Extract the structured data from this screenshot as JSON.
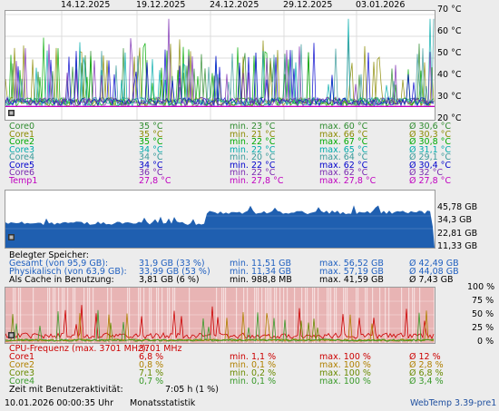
{
  "dates": [
    "14.12.2025",
    "19.12.2025",
    "24.12.2025",
    "29.12.2025",
    "03.01.2026"
  ],
  "temp_chart": {
    "ticks": [
      "70 °C",
      "60 °C",
      "50 °C",
      "40 °C",
      "30 °C",
      "20 °C"
    ],
    "colors": [
      "#2e8b2e",
      "#8a8a00",
      "#00aa00",
      "#00aaaa",
      "#3a9a9a",
      "#0000cc",
      "#7a2ab0",
      "#c000c0"
    ],
    "rows": [
      {
        "name": "Core0",
        "cur": "35 °C",
        "min": "min. 23 °C",
        "max": "max. 60 °C",
        "avg": "Ø 30,6 °C",
        "color": "#2e8b2e"
      },
      {
        "name": "Core1",
        "cur": "35 °C",
        "min": "min. 21 °C",
        "max": "max. 66 °C",
        "avg": "Ø 30,3 °C",
        "color": "#8a8a00"
      },
      {
        "name": "Core2",
        "cur": "35 °C",
        "min": "min. 22 °C",
        "max": "max. 67 °C",
        "avg": "Ø 30,8 °C",
        "color": "#00aa00"
      },
      {
        "name": "Core3",
        "cur": "34 °C",
        "min": "min. 22 °C",
        "max": "max. 65 °C",
        "avg": "Ø 31,1 °C",
        "color": "#00aaaa"
      },
      {
        "name": "Core4",
        "cur": "34 °C",
        "min": "min. 20 °C",
        "max": "max. 64 °C",
        "avg": "Ø 29,1 °C",
        "color": "#3a9a9a"
      },
      {
        "name": "Core5",
        "cur": "34 °C",
        "min": "min. 22 °C",
        "max": "max. 62 °C",
        "avg": "Ø 30,4 °C",
        "color": "#0000cc"
      },
      {
        "name": "Core6",
        "cur": "36 °C",
        "min": "min. 22 °C",
        "max": "max. 62 °C",
        "avg": "Ø 32 °C",
        "color": "#7a2ab0"
      },
      {
        "name": "Temp1",
        "cur": "27,8 °C",
        "min": "min. 27,8 °C",
        "max": "max. 27,8 °C",
        "avg": "Ø 27,8 °C",
        "color": "#c000c0"
      }
    ]
  },
  "mem_chart": {
    "ticks": [
      "45,78 GB",
      "34,3 GB",
      "22,81 GB",
      "11,33 GB"
    ],
    "fill_color": "#1f5fb0",
    "header": "Belegter Speicher:",
    "rows": [
      {
        "name": "Gesamt (von 95,9 GB):",
        "cur": "31,9 GB (33 %)",
        "min": "min. 11,51 GB",
        "max": "max. 56,52 GB",
        "avg": "Ø 42,49 GB",
        "color": "#2060c0"
      },
      {
        "name": "Physikalisch (von 63,9 GB):",
        "cur": "33,99 GB (53 %)",
        "min": "min. 11,34 GB",
        "max": "max. 57,19 GB",
        "avg": "Ø 44,08 GB",
        "color": "#2060c0"
      },
      {
        "name": "Als Cache in Benutzung:",
        "cur": "3,81 GB (6 %)",
        "min": "min. 988,8 MB",
        "max": "max. 41,59 GB",
        "avg": "Ø 7,43 GB",
        "color": "#000000"
      }
    ]
  },
  "cpu_chart": {
    "ticks": [
      "100 %",
      "75 %",
      "50 %",
      "25 %",
      "0 %"
    ],
    "bg_color": "#e8b4b4",
    "freq_label": "CPU-Frequenz (max. 3701 MHz):",
    "freq_value": "3701 MHz",
    "freq_color": "#cc0000",
    "rows": [
      {
        "name": "Core1",
        "cur": "6,8 %",
        "min": "min. 1,1 %",
        "max": "max. 100 %",
        "avg": "Ø 12 %",
        "color": "#cc0000"
      },
      {
        "name": "Core2",
        "cur": "0,8 %",
        "min": "min. 0,1 %",
        "max": "max. 100 %",
        "avg": "Ø 2,8 %",
        "color": "#b08000"
      },
      {
        "name": "Core3",
        "cur": "7,1 %",
        "min": "min. 0,2 %",
        "max": "max. 100 %",
        "avg": "Ø 6,8 %",
        "color": "#6a8a00"
      },
      {
        "name": "Core4",
        "cur": "0,7 %",
        "min": "min. 0,1 %",
        "max": "max. 100 %",
        "avg": "Ø 3,4 %",
        "color": "#3a9a2a"
      }
    ],
    "activity_label": "Zeit mit Benutzeraktivität:",
    "activity_value": "7:05 h (1 %)"
  },
  "footer": {
    "timestamp": "10.01.2026 00:00:35 Uhr",
    "mode": "Monatsstatistik",
    "app": "WebTemp 3.39-pre1",
    "app_color": "#2050a0"
  }
}
